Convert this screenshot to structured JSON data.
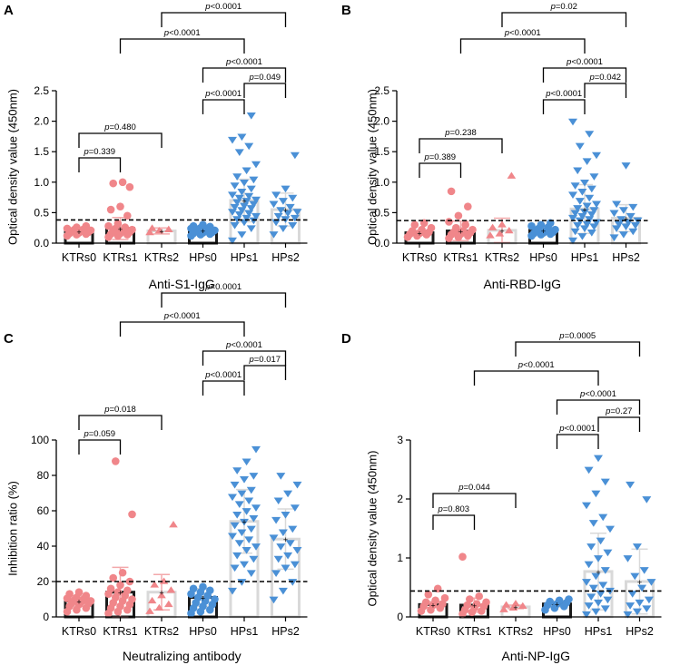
{
  "colors": {
    "ktr": "#f0868a",
    "hp": "#4a90d6",
    "dark": "#1a1a1a",
    "light": "#d9d9d9",
    "err": "#f3a9ab"
  },
  "chart_data": [
    {
      "panel": "A",
      "type": "bar-scatter",
      "ylabel": "Optical density value (450nm)",
      "xtitle": "Anti-S1-IgG",
      "ylim": [
        0,
        2.5
      ],
      "yticks": [
        "0.0",
        "0.5",
        "1.0",
        "1.5",
        "2.0",
        "2.5"
      ],
      "tickvals": [
        0,
        0.5,
        1,
        1.5,
        2,
        2.5
      ],
      "cutoff": 0.38,
      "categories": [
        "KTRs0",
        "KTRs1",
        "KTRs2",
        "HPs0",
        "HPs1",
        "HPs2"
      ],
      "means": [
        0.19,
        0.24,
        0.2,
        0.21,
        0.7,
        0.55
      ],
      "sd": [
        0.04,
        0.18,
        0.05,
        0.04,
        0.35,
        0.27
      ],
      "points": [
        [
          0.12,
          0.14,
          0.15,
          0.16,
          0.17,
          0.18,
          0.19,
          0.2,
          0.21,
          0.22,
          0.23,
          0.24,
          0.26,
          0.28
        ],
        [
          0.1,
          0.12,
          0.14,
          0.15,
          0.16,
          0.18,
          0.19,
          0.2,
          0.22,
          0.24,
          0.26,
          0.28,
          0.32,
          0.45,
          0.55,
          0.6,
          0.92,
          0.98,
          1.0
        ],
        [
          0.17,
          0.2,
          0.22,
          0.24
        ],
        [
          0.12,
          0.14,
          0.15,
          0.16,
          0.17,
          0.18,
          0.19,
          0.2,
          0.21,
          0.22,
          0.23,
          0.24,
          0.25,
          0.27,
          0.28,
          0.3
        ],
        [
          0.05,
          0.15,
          0.25,
          0.3,
          0.35,
          0.38,
          0.4,
          0.42,
          0.45,
          0.48,
          0.5,
          0.52,
          0.55,
          0.58,
          0.6,
          0.62,
          0.65,
          0.68,
          0.7,
          0.72,
          0.75,
          0.78,
          0.8,
          0.85,
          0.9,
          0.95,
          1.0,
          1.05,
          1.1,
          1.2,
          1.3,
          1.5,
          1.6,
          1.7,
          1.75,
          2.1
        ],
        [
          0.15,
          0.25,
          0.3,
          0.35,
          0.4,
          0.42,
          0.45,
          0.5,
          0.52,
          0.55,
          0.6,
          0.65,
          0.7,
          0.75,
          0.8,
          0.9,
          1.45
        ]
      ],
      "comparisons": [
        {
          "from": 0,
          "to": 1,
          "p": "p=0.339"
        },
        {
          "from": 0,
          "to": 2,
          "p": "p=0.480"
        },
        {
          "from": 3,
          "to": 4,
          "p": "p<0.0001"
        },
        {
          "from": 4,
          "to": 5,
          "p": "p=0.049"
        },
        {
          "from": 3,
          "to": 5,
          "p": "p<0.0001"
        },
        {
          "from": 1,
          "to": 4,
          "p": "p<0.0001"
        },
        {
          "from": 2,
          "to": 5,
          "p": "p<0.0001"
        }
      ]
    },
    {
      "panel": "B",
      "type": "bar-scatter",
      "ylabel": "Optical density value (450nm)",
      "xtitle": "Anti-RBD-IgG",
      "ylim": [
        0,
        2.5
      ],
      "yticks": [
        "0.0",
        "0.5",
        "1.0",
        "1.5",
        "2.0",
        "2.5"
      ],
      "tickvals": [
        0,
        0.5,
        1,
        1.5,
        2,
        2.5
      ],
      "cutoff": 0.37,
      "categories": [
        "KTRs0",
        "KTRs1",
        "KTRs2",
        "HPs0",
        "HPs1",
        "HPs2"
      ],
      "means": [
        0.17,
        0.2,
        0.21,
        0.21,
        0.56,
        0.41
      ],
      "sd": [
        0.04,
        0.16,
        0.2,
        0.05,
        0.4,
        0.22
      ],
      "points": [
        [
          0.1,
          0.12,
          0.14,
          0.15,
          0.16,
          0.18,
          0.2,
          0.22,
          0.25,
          0.3,
          0.33
        ],
        [
          0.08,
          0.1,
          0.12,
          0.14,
          0.15,
          0.17,
          0.18,
          0.2,
          0.22,
          0.25,
          0.3,
          0.35,
          0.45,
          0.6,
          0.85
        ],
        [
          0.12,
          0.15,
          0.2,
          0.25,
          0.3,
          1.1
        ],
        [
          0.12,
          0.14,
          0.15,
          0.16,
          0.17,
          0.18,
          0.19,
          0.2,
          0.22,
          0.24,
          0.26,
          0.28,
          0.3,
          0.33
        ],
        [
          0.05,
          0.12,
          0.18,
          0.2,
          0.25,
          0.28,
          0.3,
          0.32,
          0.35,
          0.38,
          0.4,
          0.42,
          0.45,
          0.48,
          0.5,
          0.52,
          0.55,
          0.58,
          0.62,
          0.65,
          0.7,
          0.75,
          0.8,
          0.85,
          0.9,
          0.95,
          1.0,
          1.1,
          1.2,
          1.35,
          1.45,
          1.6,
          1.8,
          2.0
        ],
        [
          0.1,
          0.15,
          0.2,
          0.25,
          0.28,
          0.3,
          0.32,
          0.35,
          0.38,
          0.4,
          0.45,
          0.5,
          0.55,
          0.6,
          0.65,
          1.28
        ]
      ],
      "comparisons": [
        {
          "from": 0,
          "to": 1,
          "p": "p=0.389"
        },
        {
          "from": 0,
          "to": 2,
          "p": "p=0.238"
        },
        {
          "from": 3,
          "to": 4,
          "p": "p<0.0001"
        },
        {
          "from": 4,
          "to": 5,
          "p": "p=0.042"
        },
        {
          "from": 3,
          "to": 5,
          "p": "p<0.0001"
        },
        {
          "from": 1,
          "to": 4,
          "p": "p<0.0001"
        },
        {
          "from": 2,
          "to": 5,
          "p": "p=0.02"
        }
      ]
    },
    {
      "panel": "C",
      "type": "bar-scatter",
      "ylabel": "Inhibition ratio (%)",
      "xtitle": "Neutralizing antibody",
      "ylim": [
        0,
        100
      ],
      "yticks": [
        "0",
        "20",
        "40",
        "60",
        "80",
        "100"
      ],
      "tickvals": [
        0,
        20,
        40,
        60,
        80,
        100
      ],
      "cutoff": 20,
      "categories": [
        "KTRs0",
        "KTRs1",
        "KTRs2",
        "HPs0",
        "HPs1",
        "HPs2"
      ],
      "means": [
        9,
        14,
        14,
        11,
        54,
        44
      ],
      "sd": [
        3,
        14,
        10,
        5,
        18,
        17
      ],
      "points": [
        [
          3,
          4,
          5,
          6,
          7,
          7.5,
          8,
          8.5,
          9,
          9.5,
          10,
          10.5,
          11,
          12,
          13,
          14
        ],
        [
          2,
          3,
          4,
          5,
          6,
          7,
          8,
          9,
          10,
          11,
          12,
          13,
          14,
          15,
          16,
          18,
          20,
          22,
          25,
          58,
          88
        ],
        [
          3,
          5,
          7,
          9,
          12,
          15,
          18,
          20,
          52
        ],
        [
          2,
          3,
          4,
          5,
          6,
          7,
          8,
          9,
          10,
          11,
          12,
          13,
          14,
          15,
          16,
          17
        ],
        [
          15,
          20,
          25,
          28,
          30,
          33,
          35,
          38,
          40,
          42,
          44,
          46,
          48,
          50,
          52,
          54,
          56,
          58,
          60,
          62,
          64,
          66,
          68,
          70,
          72,
          75,
          78,
          80,
          83,
          88,
          95
        ],
        [
          10,
          15,
          20,
          25,
          28,
          30,
          33,
          35,
          38,
          40,
          42,
          45,
          48,
          50,
          55,
          58,
          62,
          66,
          70,
          75,
          80
        ]
      ],
      "comparisons": [
        {
          "from": 0,
          "to": 1,
          "p": "p=0.059"
        },
        {
          "from": 0,
          "to": 2,
          "p": "p=0.018"
        },
        {
          "from": 3,
          "to": 4,
          "p": "p<0.0001"
        },
        {
          "from": 4,
          "to": 5,
          "p": "p=0.017"
        },
        {
          "from": 3,
          "to": 5,
          "p": "p<0.0001"
        },
        {
          "from": 1,
          "to": 4,
          "p": "p<0.0001"
        },
        {
          "from": 2,
          "to": 5,
          "p": "p<0.0001"
        }
      ]
    },
    {
      "panel": "D",
      "type": "bar-scatter",
      "ylabel": "Optical density value (450nm)",
      "xtitle": "Anti-NP-IgG",
      "ylim": [
        0,
        3
      ],
      "yticks": [
        "0",
        "1",
        "2",
        "3"
      ],
      "tickvals": [
        0,
        1,
        2,
        3
      ],
      "cutoff": 0.44,
      "categories": [
        "KTRs0",
        "KTRs1",
        "KTRs2",
        "HPs0",
        "HPs1",
        "HPs2"
      ],
      "means": [
        0.21,
        0.2,
        0.17,
        0.22,
        0.77,
        0.6
      ],
      "sd": [
        0.05,
        0.12,
        0.03,
        0.05,
        0.65,
        0.55
      ],
      "points": [
        [
          0.1,
          0.12,
          0.15,
          0.18,
          0.2,
          0.22,
          0.25,
          0.28,
          0.32,
          0.38,
          0.48
        ],
        [
          0.05,
          0.08,
          0.1,
          0.12,
          0.15,
          0.18,
          0.2,
          0.22,
          0.25,
          0.3,
          0.35,
          1.02
        ],
        [
          0.12,
          0.15,
          0.18,
          0.2,
          0.22
        ],
        [
          0.12,
          0.15,
          0.18,
          0.2,
          0.22,
          0.24,
          0.26,
          0.28,
          0.3
        ],
        [
          0.05,
          0.1,
          0.15,
          0.2,
          0.25,
          0.3,
          0.35,
          0.4,
          0.45,
          0.5,
          0.55,
          0.6,
          0.7,
          0.8,
          0.9,
          1.0,
          1.1,
          1.2,
          1.3,
          1.5,
          1.6,
          1.7,
          1.9,
          2.1,
          2.3,
          2.5,
          2.7
        ],
        [
          0.05,
          0.1,
          0.15,
          0.2,
          0.25,
          0.3,
          0.4,
          0.5,
          0.6,
          0.7,
          0.8,
          1.0,
          1.2,
          2.0,
          2.25
        ]
      ],
      "comparisons": [
        {
          "from": 0,
          "to": 1,
          "p": "p=0.803"
        },
        {
          "from": 0,
          "to": 2,
          "p": "p=0.044"
        },
        {
          "from": 3,
          "to": 4,
          "p": "p<0.0001"
        },
        {
          "from": 4,
          "to": 5,
          "p": "p=0.27"
        },
        {
          "from": 3,
          "to": 5,
          "p": "p<0.0001"
        },
        {
          "from": 1,
          "to": 4,
          "p": "p<0.0001"
        },
        {
          "from": 2,
          "to": 5,
          "p": "p=0.0005"
        }
      ]
    }
  ]
}
